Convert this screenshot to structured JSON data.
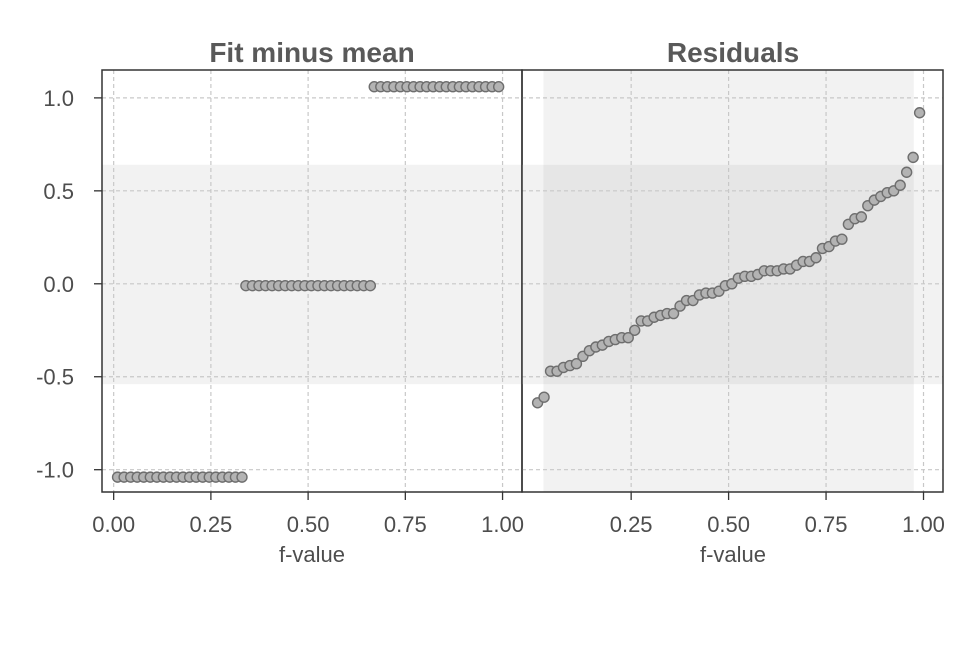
{
  "colors": {
    "point_fill": "#b3b3b3",
    "point_stroke": "#6e6e6e",
    "band_light": "#f2f2f2",
    "band_overlap": "#e6e6e6",
    "frame": "#333333",
    "grid": "#c8c8c8",
    "text": "#4d4d4d",
    "title": "#595959"
  },
  "chart_data": {
    "type": "scatter",
    "panels": [
      {
        "title": "Fit minus mean",
        "xlabel": "f-value",
        "ylabel": "",
        "xlim": [
          -0.03,
          1.05
        ],
        "ylim": [
          -1.12,
          1.15
        ],
        "x_ticks": [
          "0.00",
          "0.25",
          "0.50",
          "0.75",
          "1.00"
        ],
        "y_ticks": [
          "-1.0",
          "-0.5",
          "0.0",
          "0.5",
          "1.0"
        ],
        "grid": true,
        "shaded_y_band": [
          -0.54,
          0.64
        ],
        "shaded_x_band": null,
        "series": [
          {
            "n_points": 60,
            "groups": [
              {
                "x_from": 0.01,
                "x_to": 0.33,
                "y": -1.04
              },
              {
                "x_from": 0.34,
                "x_to": 0.66,
                "y": -0.01
              },
              {
                "x_from": 0.67,
                "x_to": 0.99,
                "y": 1.06
              }
            ]
          }
        ]
      },
      {
        "title": "Residuals",
        "xlabel": "f-value",
        "ylabel": "",
        "xlim": [
          -0.03,
          1.05
        ],
        "ylim": [
          -1.12,
          1.15
        ],
        "x_ticks": [
          "0.25",
          "0.50",
          "0.75",
          "1.00"
        ],
        "y_ticks": [],
        "grid": true,
        "shaded_y_band": [
          -0.54,
          0.64
        ],
        "shaded_x_band": [
          0.025,
          0.975
        ],
        "series": [
          {
            "x_range": [
              0.01,
              0.99
            ],
            "y": [
              -0.64,
              -0.61,
              -0.47,
              -0.47,
              -0.45,
              -0.44,
              -0.43,
              -0.39,
              -0.36,
              -0.34,
              -0.33,
              -0.31,
              -0.3,
              -0.29,
              -0.29,
              -0.25,
              -0.2,
              -0.2,
              -0.18,
              -0.17,
              -0.16,
              -0.16,
              -0.12,
              -0.09,
              -0.09,
              -0.06,
              -0.05,
              -0.05,
              -0.04,
              -0.01,
              0.0,
              0.03,
              0.04,
              0.04,
              0.05,
              0.07,
              0.07,
              0.07,
              0.08,
              0.08,
              0.1,
              0.12,
              0.12,
              0.14,
              0.19,
              0.2,
              0.23,
              0.24,
              0.32,
              0.35,
              0.36,
              0.42,
              0.45,
              0.47,
              0.49,
              0.5,
              0.53,
              0.6,
              0.68,
              0.92
            ]
          }
        ]
      }
    ]
  }
}
